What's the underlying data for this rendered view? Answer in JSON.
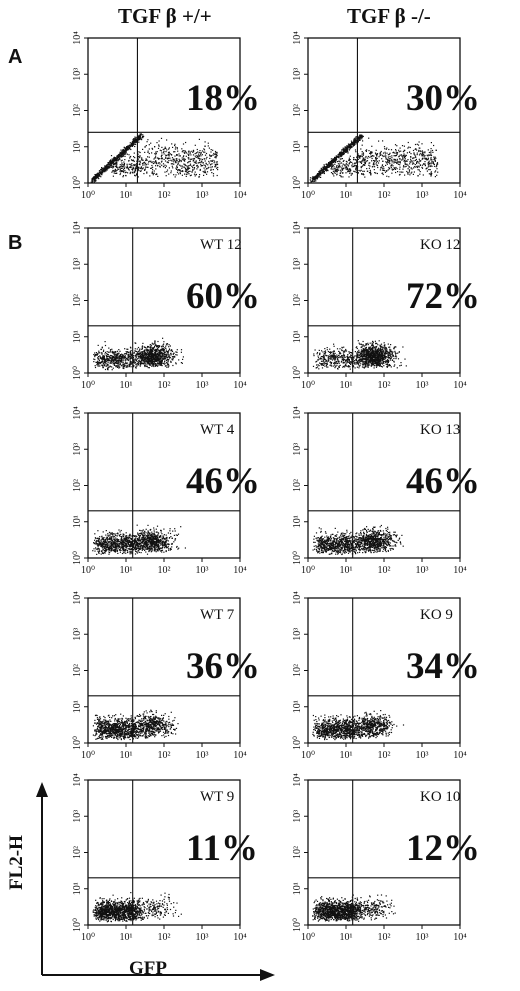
{
  "column_titles": {
    "left": "TGF β +/+",
    "right": "TGF β -/-"
  },
  "section_labels": {
    "a": "A",
    "b": "B"
  },
  "axis_labels": {
    "x": "GFP",
    "y": "FL2-H"
  },
  "chart_data": [
    {
      "type": "scatter",
      "section": "A",
      "genotype": "TGF β +/+",
      "sample": "",
      "percent_label": "18%",
      "upper_right_percent": 18,
      "xscale": "log",
      "yscale": "log",
      "xlim": [
        1,
        10000
      ],
      "ylim": [
        1,
        10000
      ],
      "x_ticks": [
        "10⁰",
        "10¹",
        "10²",
        "10³",
        "10⁴"
      ],
      "y_ticks": [
        "10⁰",
        "10¹",
        "10²",
        "10³",
        "10⁴"
      ],
      "gate_x": 20,
      "gate_y": 25
    },
    {
      "type": "scatter",
      "section": "A",
      "genotype": "TGF β -/-",
      "sample": "",
      "percent_label": "30%",
      "upper_right_percent": 30,
      "xscale": "log",
      "yscale": "log",
      "xlim": [
        1,
        10000
      ],
      "ylim": [
        1,
        10000
      ],
      "x_ticks": [
        "10⁰",
        "10¹",
        "10²",
        "10³",
        "10⁴"
      ],
      "y_ticks": [
        "10⁰",
        "10¹",
        "10²",
        "10³",
        "10⁴"
      ],
      "gate_x": 20,
      "gate_y": 25
    },
    {
      "type": "scatter",
      "section": "B",
      "genotype": "TGF β +/+",
      "sample": "WT 12",
      "percent_label": "60%",
      "upper_right_percent": 60,
      "xscale": "log",
      "yscale": "log",
      "xlim": [
        1,
        10000
      ],
      "ylim": [
        1,
        10000
      ],
      "x_ticks": [
        "10⁰",
        "10¹",
        "10²",
        "10³",
        "10⁴"
      ],
      "y_ticks": [
        "10⁰",
        "10¹",
        "10²",
        "10³",
        "10⁴"
      ],
      "gate_x": 15,
      "gate_y": 20
    },
    {
      "type": "scatter",
      "section": "B",
      "genotype": "TGF β -/-",
      "sample": "KO 12",
      "percent_label": "72%",
      "upper_right_percent": 72,
      "xscale": "log",
      "yscale": "log",
      "xlim": [
        1,
        10000
      ],
      "ylim": [
        1,
        10000
      ],
      "x_ticks": [
        "10⁰",
        "10¹",
        "10²",
        "10³",
        "10⁴"
      ],
      "y_ticks": [
        "10⁰",
        "10¹",
        "10²",
        "10³",
        "10⁴"
      ],
      "gate_x": 15,
      "gate_y": 20
    },
    {
      "type": "scatter",
      "section": "B",
      "genotype": "TGF β +/+",
      "sample": "WT 4",
      "percent_label": "46%",
      "upper_right_percent": 46,
      "xscale": "log",
      "yscale": "log",
      "xlim": [
        1,
        10000
      ],
      "ylim": [
        1,
        10000
      ],
      "x_ticks": [
        "10⁰",
        "10¹",
        "10²",
        "10³",
        "10⁴"
      ],
      "y_ticks": [
        "10⁰",
        "10¹",
        "10²",
        "10³",
        "10⁴"
      ],
      "gate_x": 15,
      "gate_y": 20
    },
    {
      "type": "scatter",
      "section": "B",
      "genotype": "TGF β -/-",
      "sample": "KO 13",
      "percent_label": "46%",
      "upper_right_percent": 46,
      "xscale": "log",
      "yscale": "log",
      "xlim": [
        1,
        10000
      ],
      "ylim": [
        1,
        10000
      ],
      "x_ticks": [
        "10⁰",
        "10¹",
        "10²",
        "10³",
        "10⁴"
      ],
      "y_ticks": [
        "10⁰",
        "10¹",
        "10²",
        "10³",
        "10⁴"
      ],
      "gate_x": 15,
      "gate_y": 20
    },
    {
      "type": "scatter",
      "section": "B",
      "genotype": "TGF β +/+",
      "sample": "WT 7",
      "percent_label": "36%",
      "upper_right_percent": 36,
      "xscale": "log",
      "yscale": "log",
      "xlim": [
        1,
        10000
      ],
      "ylim": [
        1,
        10000
      ],
      "x_ticks": [
        "10⁰",
        "10¹",
        "10²",
        "10³",
        "10⁴"
      ],
      "y_ticks": [
        "10⁰",
        "10¹",
        "10²",
        "10³",
        "10⁴"
      ],
      "gate_x": 15,
      "gate_y": 20
    },
    {
      "type": "scatter",
      "section": "B",
      "genotype": "TGF β -/-",
      "sample": "KO 9",
      "percent_label": "34%",
      "upper_right_percent": 34,
      "xscale": "log",
      "yscale": "log",
      "xlim": [
        1,
        10000
      ],
      "ylim": [
        1,
        10000
      ],
      "x_ticks": [
        "10⁰",
        "10¹",
        "10²",
        "10³",
        "10⁴"
      ],
      "y_ticks": [
        "10⁰",
        "10¹",
        "10²",
        "10³",
        "10⁴"
      ],
      "gate_x": 15,
      "gate_y": 20
    },
    {
      "type": "scatter",
      "section": "B",
      "genotype": "TGF β +/+",
      "sample": "WT 9",
      "percent_label": "11%",
      "upper_right_percent": 11,
      "xscale": "log",
      "yscale": "log",
      "xlim": [
        1,
        10000
      ],
      "ylim": [
        1,
        10000
      ],
      "x_ticks": [
        "10⁰",
        "10¹",
        "10²",
        "10³",
        "10⁴"
      ],
      "y_ticks": [
        "10⁰",
        "10¹",
        "10²",
        "10³",
        "10⁴"
      ],
      "gate_x": 15,
      "gate_y": 20
    },
    {
      "type": "scatter",
      "section": "B",
      "genotype": "TGF β -/-",
      "sample": "KO 10",
      "percent_label": "12%",
      "upper_right_percent": 12,
      "xscale": "log",
      "yscale": "log",
      "xlim": [
        1,
        10000
      ],
      "ylim": [
        1,
        10000
      ],
      "x_ticks": [
        "10⁰",
        "10¹",
        "10²",
        "10³",
        "10⁴"
      ],
      "y_ticks": [
        "10⁰",
        "10¹",
        "10²",
        "10³",
        "10⁴"
      ],
      "gate_x": 15,
      "gate_y": 20
    }
  ]
}
